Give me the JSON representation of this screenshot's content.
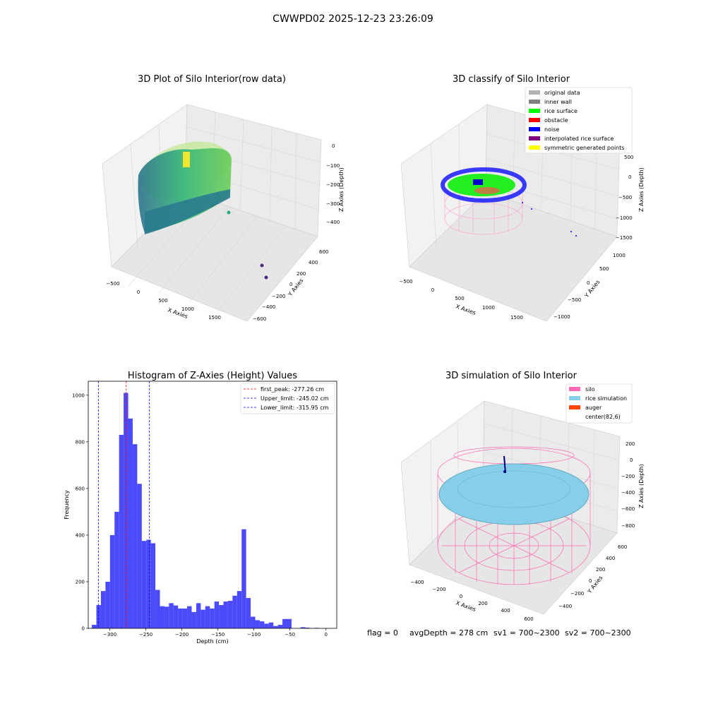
{
  "suptitle": "CWWPD02 2025-12-23 23:26:09",
  "footer": {
    "flag": "flag = 0",
    "avg_depth": "avgDepth = 278 cm",
    "sv1": "sv1 = 700~2300",
    "sv2": "sv2 = 700~2300"
  },
  "panel_raw": {
    "title": "3D Plot of Silo Interior(row data)",
    "xlabel": "X Axies",
    "ylabel": "Y Axies",
    "zlabel": "Z Axies (Depth)",
    "xticks": [
      "−500",
      "0",
      "500",
      "1000",
      "1500"
    ],
    "yticks": [
      "600",
      "400",
      "200",
      "0",
      "−200",
      "−400",
      "−600"
    ],
    "zticks": [
      "0",
      "−100",
      "−200",
      "−300",
      "−400"
    ]
  },
  "panel_classify": {
    "title": "3D classify of Silo Interior",
    "xlabel": "X Axies",
    "ylabel": "Y Axies",
    "zlabel": "Z Axies (Depth)",
    "xticks": [
      "−500",
      "0",
      "500",
      "1000",
      "1500"
    ],
    "yticks": [
      "1000",
      "500",
      "0",
      "−500",
      "−1000"
    ],
    "zticks": [
      "500",
      "0",
      "−500",
      "−1000",
      "−1500"
    ],
    "legend": [
      {
        "label": "original data",
        "color": "#b3b3b3"
      },
      {
        "label": "inner wall",
        "color": "#808080"
      },
      {
        "label": "rice surface",
        "color": "#00ff00"
      },
      {
        "label": "obstacle",
        "color": "#ff0000"
      },
      {
        "label": "noise",
        "color": "#0000ff"
      },
      {
        "label": "interpolated rice surface",
        "color": "#800080"
      },
      {
        "label": "symmetric generated points",
        "color": "#ffff00"
      }
    ]
  },
  "panel_sim": {
    "title": "3D simulation of Silo Interior",
    "xlabel": "X Axies",
    "ylabel": "Y Axies",
    "zlabel": "Z Axies (Depth)",
    "xticks": [
      "−400",
      "−200",
      "0",
      "200",
      "400",
      "600"
    ],
    "yticks": [
      "600",
      "400",
      "200",
      "0",
      "−200",
      "−400"
    ],
    "zticks": [
      "200",
      "0",
      "−200",
      "−400",
      "−600",
      "−800"
    ],
    "legend": [
      {
        "label": "silo",
        "color": "#ff69b4"
      },
      {
        "label": "rice simulation",
        "color": "#87ceeb"
      },
      {
        "label": "auger",
        "color": "#ff4500"
      },
      {
        "label": "center(82,6)",
        "color": "none"
      }
    ]
  },
  "chart_data": {
    "type": "bar",
    "title": "Histogram of Z-Axies (Height) Values",
    "xlabel": "Depth (cm)",
    "ylabel": "Frequency",
    "xlim": [
      -330,
      15
    ],
    "ylim": [
      0,
      1060
    ],
    "bar_color": "#4b4bfa",
    "xticks": [
      -300,
      -250,
      -200,
      -150,
      -100,
      -50,
      0
    ],
    "xtick_labels": [
      "−300",
      "−250",
      "−200",
      "−150",
      "−100",
      "−50",
      "0"
    ],
    "yticks": [
      0,
      200,
      400,
      600,
      800,
      1000
    ],
    "bin_width": 6.3,
    "bin_starts": [
      -325,
      -318.7,
      -312.4,
      -306.1,
      -299.8,
      -293.5,
      -287.2,
      -280.9,
      -274.6,
      -268.3,
      -262,
      -255.7,
      -249.4,
      -243.1,
      -236.8,
      -230.5,
      -224.2,
      -217.9,
      -211.6,
      -205.3,
      -199,
      -192.7,
      -186.4,
      -180.1,
      -173.8,
      -167.5,
      -161.2,
      -154.9,
      -148.6,
      -142.3,
      -136,
      -129.7,
      -123.4,
      -117.1,
      -110.8,
      -104.5,
      -98.2,
      -91.9,
      -85.6,
      -79.3,
      -73,
      -66.7,
      -60.4,
      -54.1,
      -47.8,
      -41.5,
      -35.2,
      -28.9,
      -22.6,
      -16.3,
      -10,
      -3.7
    ],
    "values": [
      15,
      100,
      160,
      200,
      400,
      500,
      830,
      1010,
      900,
      790,
      620,
      375,
      380,
      365,
      165,
      95,
      93,
      108,
      98,
      85,
      85,
      95,
      70,
      108,
      80,
      95,
      85,
      115,
      100,
      115,
      118,
      140,
      160,
      425,
      130,
      50,
      35,
      30,
      20,
      25,
      10,
      15,
      40,
      40,
      0,
      0,
      5,
      3,
      0,
      2,
      0,
      0
    ],
    "vlines": [
      {
        "label": "first_peak: -277.26 cm",
        "x": -277.26,
        "color": "#ff0000"
      },
      {
        "label": "Upper_limit: -245.02 cm",
        "x": -245.02,
        "color": "#0000ff"
      },
      {
        "label": "Lower_limit: -315.95 cm",
        "x": -315.95,
        "color": "#0000ff"
      }
    ],
    "legend_position": "top-right",
    "grid": false
  }
}
